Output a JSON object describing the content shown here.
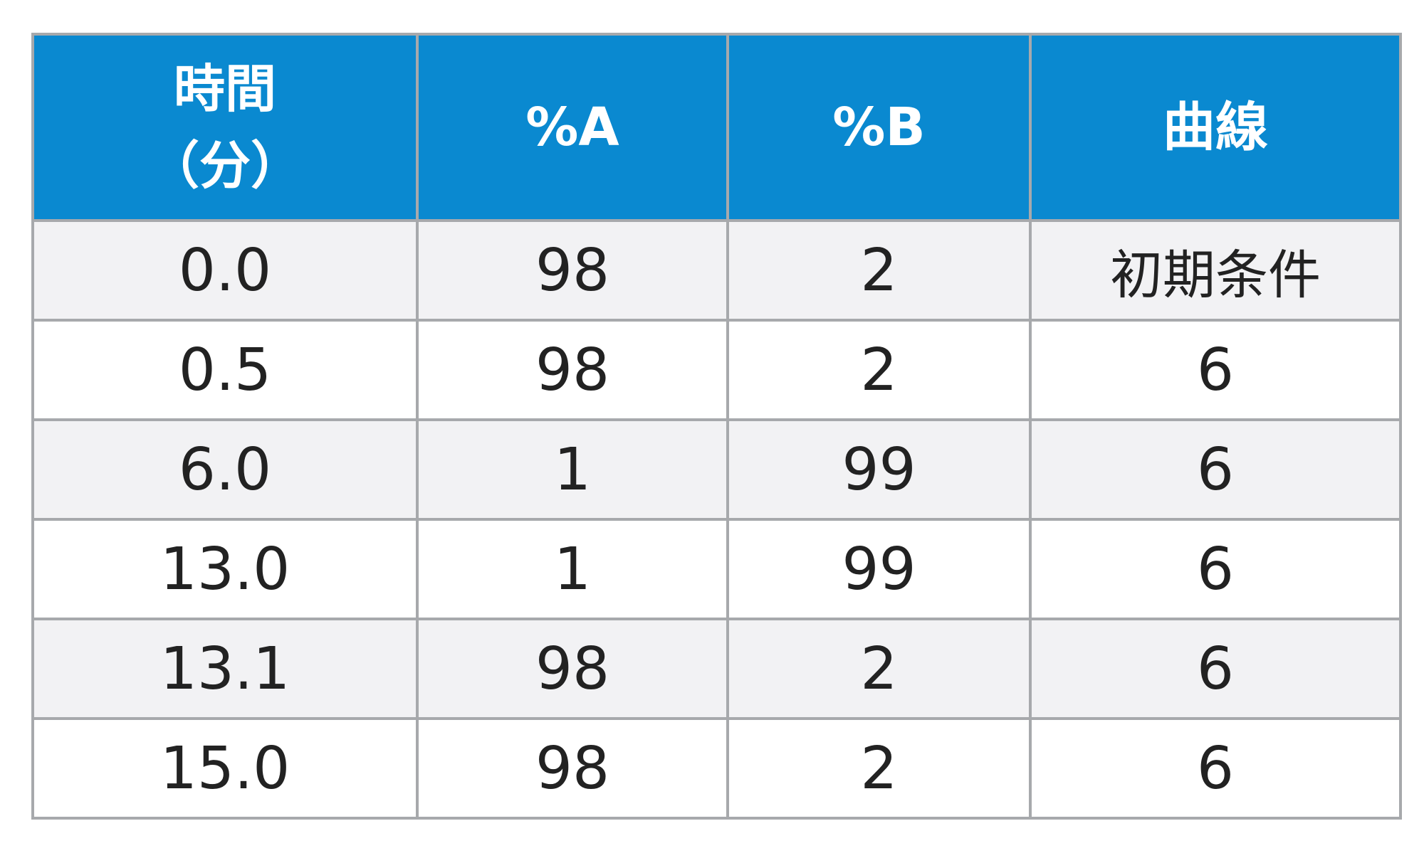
{
  "table": {
    "headers": {
      "time_line1": "時間",
      "time_line2": "（分）",
      "percent_a": "%A",
      "percent_b": "%B",
      "curve": "曲線"
    },
    "rows": [
      {
        "time": "0.0",
        "percent_a": "98",
        "percent_b": "2",
        "curve": "初期条件"
      },
      {
        "time": "0.5",
        "percent_a": "98",
        "percent_b": "2",
        "curve": "6"
      },
      {
        "time": "6.0",
        "percent_a": "1",
        "percent_b": "99",
        "curve": "6"
      },
      {
        "time": "13.0",
        "percent_a": "1",
        "percent_b": "99",
        "curve": "6"
      },
      {
        "time": "13.1",
        "percent_a": "98",
        "percent_b": "2",
        "curve": "6"
      },
      {
        "time": "15.0",
        "percent_a": "98",
        "percent_b": "2",
        "curve": "6"
      }
    ],
    "colors": {
      "header_background": "#0a89d0",
      "header_text": "#ffffff",
      "border": "#a7a9ac",
      "row_odd_background": "#f2f2f4",
      "row_even_background": "#ffffff",
      "cell_text": "#222222"
    }
  }
}
